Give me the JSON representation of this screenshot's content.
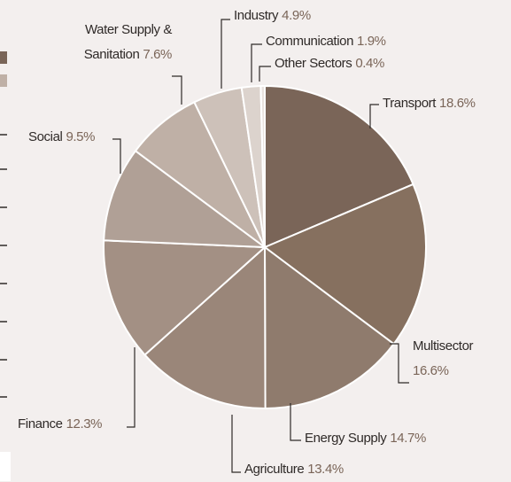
{
  "chart_data": {
    "type": "pie",
    "categories": [
      "Transport",
      "Multisector",
      "Energy Supply",
      "Agriculture",
      "Finance",
      "Social",
      "Water Supply & Sanitation",
      "Industry",
      "Communication",
      "Other Sectors"
    ],
    "values": [
      18.6,
      16.6,
      14.7,
      13.4,
      12.3,
      9.5,
      7.6,
      4.9,
      1.9,
      0.4
    ],
    "value_labels": [
      "18.6%",
      "16.6%",
      "14.7%",
      "13.4%",
      "12.3%",
      "9.5%",
      "7.6%",
      "4.9%",
      "1.9%",
      "0.4%"
    ],
    "colors": [
      "#7a6558",
      "#86705f",
      "#8f7b6d",
      "#9a8679",
      "#a39084",
      "#b0a096",
      "#bfb0a6",
      "#cdc1b9",
      "#dcd3cd",
      "#e8e2de"
    ]
  }
}
